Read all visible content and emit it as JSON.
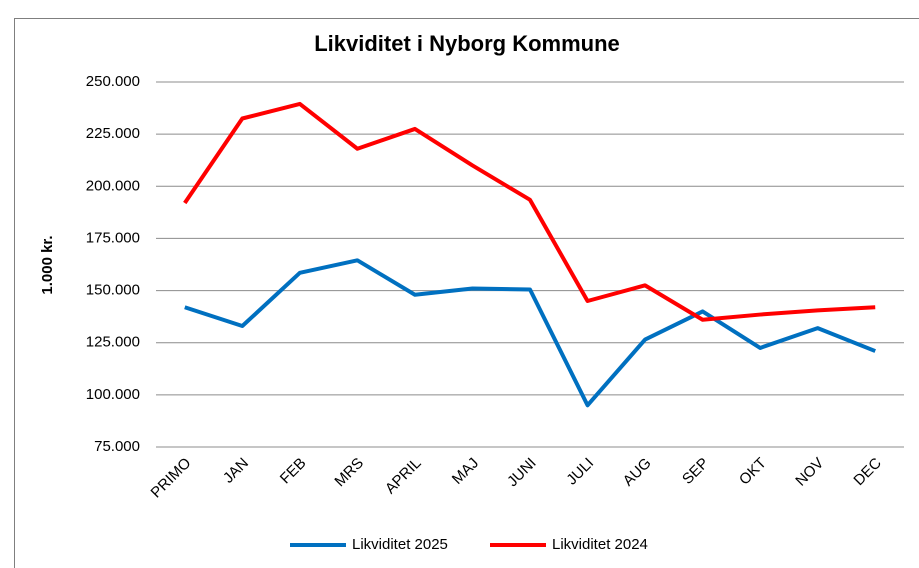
{
  "chart_data": {
    "type": "line",
    "title": "Likviditet i Nyborg Kommune",
    "y_label": "1.000 kr.",
    "categories": [
      "PRIMO",
      "JAN",
      "FEB",
      "MRS",
      "APRIL",
      "MAJ",
      "JUNI",
      "JULI",
      "AUG",
      "SEP",
      "OKT",
      "NOV",
      "DEC"
    ],
    "series": [
      {
        "name": "Likviditet 2025",
        "color": "#0070c0",
        "values": [
          142000,
          133000,
          158500,
          164500,
          148000,
          151000,
          150500,
          95000,
          126500,
          140000,
          122500,
          132000,
          121000
        ]
      },
      {
        "name": "Likviditet 2024",
        "color": "#ff0000",
        "values": [
          192000,
          232500,
          239500,
          218000,
          227500,
          210000,
          193500,
          145000,
          152500,
          136000,
          138500,
          140500,
          142000
        ]
      }
    ],
    "ylim": [
      75000,
      250000
    ],
    "yticks": [
      {
        "value": 75000,
        "label": "75.000"
      },
      {
        "value": 100000,
        "label": "100.000"
      },
      {
        "value": 125000,
        "label": "125.000"
      },
      {
        "value": 150000,
        "label": "150.000"
      },
      {
        "value": 175000,
        "label": "175.000"
      },
      {
        "value": 200000,
        "label": "200.000"
      },
      {
        "value": 225000,
        "label": "225.000"
      },
      {
        "value": 250000,
        "label": "250.000"
      }
    ],
    "grid": true,
    "legend": "bottom"
  }
}
